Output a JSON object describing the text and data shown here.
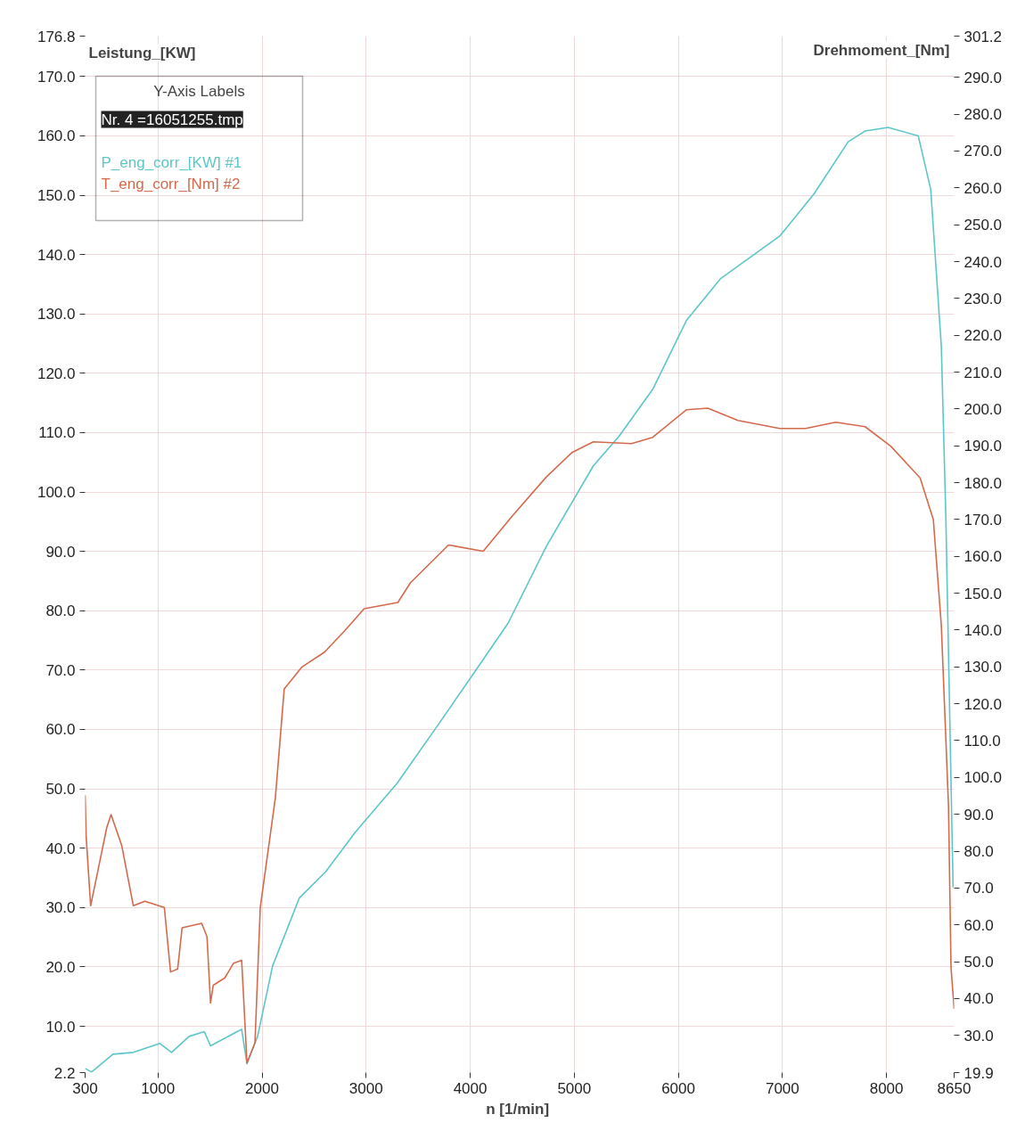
{
  "chart_data": {
    "type": "line",
    "xlabel": "n  [1/min]",
    "ylabel": "Leistung_[KW]",
    "y2label": "Drehmoment_[Nm]",
    "legend_title": "Y-Axis Labels",
    "annotations": [
      "Nr. 4 =16051255.tmp"
    ],
    "xlim": [
      300,
      8650
    ],
    "xticks": [
      300,
      1000,
      2000,
      3000,
      4000,
      5000,
      6000,
      7000,
      8000,
      8650
    ],
    "ylim": [
      2.2,
      176.8
    ],
    "yticks": [
      2.2,
      {
        "value": 10,
        "label": "10.0"
      },
      {
        "value": 20,
        "label": "20.0"
      },
      {
        "value": 30,
        "label": "30.0"
      },
      {
        "value": 40,
        "label": "40.0"
      },
      {
        "value": 50,
        "label": "50.0"
      },
      {
        "value": 60,
        "label": "60.0"
      },
      {
        "value": 70,
        "label": "70.0"
      },
      {
        "value": 80,
        "label": "80.0"
      },
      {
        "value": 90,
        "label": "90.0"
      },
      {
        "value": 100,
        "label": "100.0"
      },
      {
        "value": 110,
        "label": "110.0"
      },
      {
        "value": 120,
        "label": "120.0"
      },
      {
        "value": 130,
        "label": "130.0"
      },
      {
        "value": 140,
        "label": "140.0"
      },
      {
        "value": 150,
        "label": "150.0"
      },
      {
        "value": 160,
        "label": "160.0"
      },
      {
        "value": 170,
        "label": "170.0"
      },
      176.8
    ],
    "y2lim": [
      19.9,
      301.2
    ],
    "y2ticks": [
      19.9,
      {
        "value": 30,
        "label": "30.0"
      },
      {
        "value": 40,
        "label": "40.0"
      },
      {
        "value": 50,
        "label": "50.0"
      },
      {
        "value": 60,
        "label": "60.0"
      },
      {
        "value": 70,
        "label": "70.0"
      },
      {
        "value": 80,
        "label": "80.0"
      },
      {
        "value": 90,
        "label": "90.0"
      },
      {
        "value": 100,
        "label": "100.0"
      },
      {
        "value": 110,
        "label": "110.0"
      },
      {
        "value": 120,
        "label": "120.0"
      },
      {
        "value": 130,
        "label": "130.0"
      },
      {
        "value": 140,
        "label": "140.0"
      },
      {
        "value": 150,
        "label": "150.0"
      },
      {
        "value": 160,
        "label": "160.0"
      },
      {
        "value": 170,
        "label": "170.0"
      },
      {
        "value": 180,
        "label": "180.0"
      },
      {
        "value": 190,
        "label": "190.0"
      },
      {
        "value": 200,
        "label": "200.0"
      },
      {
        "value": 210,
        "label": "210.0"
      },
      {
        "value": 220,
        "label": "220.0"
      },
      {
        "value": 230,
        "label": "230.0"
      },
      {
        "value": 240,
        "label": "240.0"
      },
      {
        "value": 250,
        "label": "250.0"
      },
      {
        "value": 260,
        "label": "260.0"
      },
      {
        "value": 270,
        "label": "270.0"
      },
      {
        "value": 280,
        "label": "280.0"
      },
      {
        "value": 290,
        "label": "290.0"
      },
      301.2
    ],
    "grid": true,
    "legend": "top left",
    "marker": "none",
    "line_style": "solid",
    "series": [
      {
        "name": "P_eng_corr_[KW] #1",
        "color": "#5cc6c8",
        "x": [
          300,
          362,
          567,
          763,
          1019,
          1130,
          1300,
          1445,
          1505,
          1761,
          1804,
          1855,
          1957,
          2102,
          2358,
          2614,
          2896,
          3300,
          3700,
          4000,
          4364,
          4730,
          5183,
          5430,
          5754,
          6078,
          6403,
          6974,
          7307,
          7631,
          7794,
          8015,
          8305,
          8425,
          8527,
          8570,
          8640
        ],
        "values": [
          2.9,
          2.3,
          5.3,
          5.6,
          7.1,
          5.6,
          8.3,
          9.1,
          6.7,
          9.1,
          9.5,
          3.7,
          8.3,
          20.2,
          31.6,
          36.1,
          42.7,
          51,
          61,
          68.6,
          77.9,
          90.8,
          104.4,
          109.4,
          117.3,
          128.9,
          135.9,
          143.1,
          150.3,
          159,
          160.8,
          161.4,
          160,
          151,
          124.5,
          95.9,
          33.4
        ]
      },
      {
        "name": "T_eng_corr_[Nm] #2",
        "color": "#d46a4c",
        "axis": "y2",
        "x": [
          300,
          310,
          353,
          420,
          507,
          549,
          652,
          763,
          874,
          1061,
          1121,
          1189,
          1232,
          1420,
          1471,
          1505,
          1531,
          1642,
          1727,
          1804,
          1829,
          1855,
          1932,
          1983,
          2128,
          2213,
          2384,
          2600,
          2800,
          2981,
          3305,
          3425,
          3792,
          4125,
          4406,
          4730,
          4978,
          5183,
          5550,
          5754,
          6078,
          6283,
          6573,
          6974,
          7222,
          7512,
          7794,
          8041,
          8323,
          8450,
          8527,
          8596,
          8620,
          8650
        ],
        "values": [
          95.2,
          83.9,
          65.2,
          74.3,
          86.3,
          89.9,
          81.5,
          65.2,
          66.4,
          64.7,
          47.2,
          48,
          59.2,
          60.4,
          56.8,
          38.8,
          43.6,
          45.6,
          49.6,
          50.4,
          36.9,
          22.5,
          28,
          64.7,
          94.5,
          124,
          130,
          134,
          140,
          145.8,
          147.5,
          152.8,
          163.1,
          161.4,
          171,
          181.5,
          188.2,
          191.1,
          190.6,
          192.3,
          199.8,
          200.2,
          196.9,
          194.7,
          194.7,
          196.4,
          195.2,
          189.9,
          181.3,
          170,
          141.2,
          92.1,
          48.4,
          37.2
        ]
      }
    ]
  }
}
